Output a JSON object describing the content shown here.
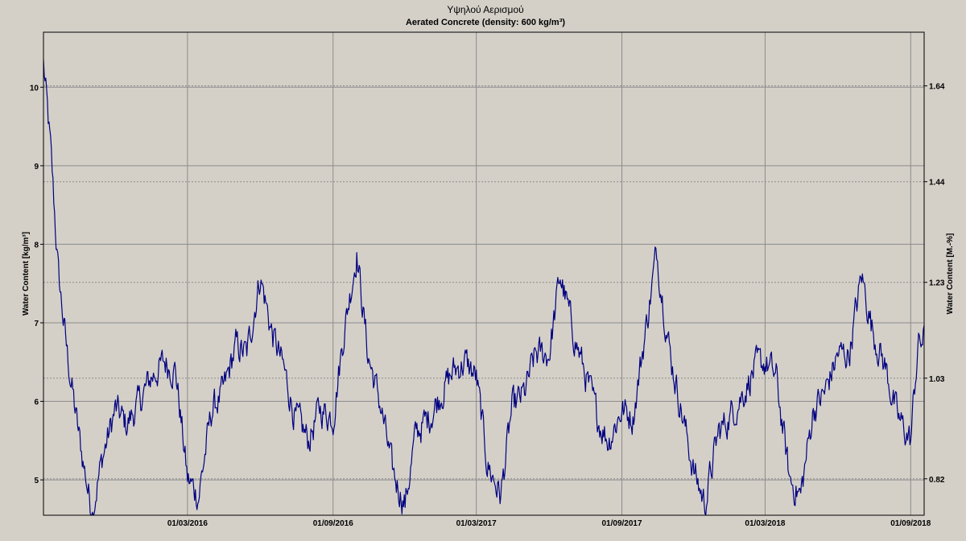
{
  "chart_data": {
    "type": "line",
    "title": "Υψηλού Αερισμού",
    "subtitle": "Aerated Concrete (density: 600 kg/m³)",
    "ylabel": "Water Content [kg/m³]",
    "y2label": "Water Content [M.-%]",
    "ylim": [
      4.55,
      10.7
    ],
    "y2lim": [
      0.744,
      1.752
    ],
    "yticks": [
      5,
      6,
      7,
      8,
      9,
      10
    ],
    "y2ticks": [
      0.82,
      1.03,
      1.23,
      1.44,
      1.64
    ],
    "xrange": [
      "2015-09-01",
      "2018-09-18"
    ],
    "xticks": [
      "01/03/2016",
      "01/09/2016",
      "01/03/2017",
      "01/09/2017",
      "01/03/2018",
      "01/09/2018"
    ],
    "grid": true,
    "colors": {
      "series": "#000080",
      "background": "#d4d0c8",
      "grid": "#8c8c8c"
    },
    "series": [
      {
        "x": [
          "2015-09-01",
          "2015-09-10",
          "2015-09-20",
          "2015-10-01",
          "2015-10-15",
          "2015-11-01",
          "2015-11-15",
          "2015-12-01",
          "2015-12-15",
          "2016-01-01",
          "2016-01-15",
          "2016-02-01",
          "2016-02-15",
          "2016-03-01",
          "2016-03-15",
          "2016-04-01",
          "2016-04-15",
          "2016-05-01",
          "2016-05-15",
          "2016-06-01",
          "2016-06-15",
          "2016-07-01",
          "2016-07-15",
          "2016-08-01",
          "2016-08-15",
          "2016-09-01",
          "2016-09-15",
          "2016-10-01",
          "2016-10-15",
          "2016-11-01",
          "2016-11-15",
          "2016-12-01",
          "2016-12-15",
          "2017-01-01",
          "2017-01-15",
          "2017-02-01",
          "2017-02-15",
          "2017-03-01",
          "2017-03-15",
          "2017-04-01",
          "2017-04-15",
          "2017-05-01",
          "2017-05-15",
          "2017-06-01",
          "2017-06-15",
          "2017-07-01",
          "2017-07-15",
          "2017-08-01",
          "2017-08-15",
          "2017-09-01",
          "2017-09-15",
          "2017-10-01",
          "2017-10-15",
          "2017-11-01",
          "2017-11-15",
          "2017-12-01",
          "2017-12-15",
          "2018-01-01",
          "2018-01-15",
          "2018-02-01",
          "2018-02-15",
          "2018-03-01",
          "2018-03-15",
          "2018-04-01",
          "2018-04-15",
          "2018-05-01",
          "2018-05-15",
          "2018-06-01",
          "2018-06-15",
          "2018-07-01",
          "2018-07-15",
          "2018-08-01",
          "2018-08-15",
          "2018-09-01",
          "2018-09-10",
          "2018-09-18"
        ],
        "values": [
          10.3,
          9.2,
          7.6,
          6.6,
          5.6,
          4.6,
          5.3,
          5.9,
          5.7,
          6.0,
          6.3,
          6.5,
          6.4,
          5.0,
          4.8,
          5.9,
          6.1,
          6.7,
          6.6,
          7.6,
          6.9,
          6.4,
          5.8,
          5.5,
          5.9,
          5.8,
          6.9,
          7.9,
          6.6,
          5.9,
          5.1,
          4.7,
          5.6,
          5.8,
          6.1,
          6.4,
          6.5,
          6.3,
          5.2,
          4.8,
          5.9,
          6.1,
          6.6,
          6.6,
          7.6,
          6.9,
          6.4,
          5.8,
          5.5,
          5.9,
          5.8,
          6.9,
          7.9,
          6.6,
          5.9,
          5.1,
          4.7,
          5.6,
          5.8,
          6.1,
          6.4,
          6.5,
          6.3,
          5.0,
          4.8,
          5.9,
          6.1,
          6.6,
          6.6,
          7.6,
          6.9,
          6.4,
          5.8,
          5.5,
          6.7,
          6.8
        ]
      }
    ]
  }
}
